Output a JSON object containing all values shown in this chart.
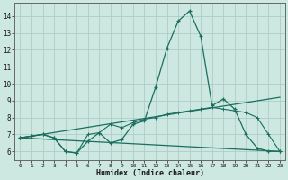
{
  "xlabel": "Humidex (Indice chaleur)",
  "bg_color": "#cce8e0",
  "grid_color": "#b0ccc8",
  "line_color": "#1a6e60",
  "x_ticks": [
    0,
    1,
    2,
    3,
    4,
    5,
    6,
    7,
    8,
    9,
    10,
    11,
    12,
    13,
    14,
    15,
    16,
    17,
    18,
    19,
    20,
    21,
    22,
    23
  ],
  "ylim": [
    5.5,
    14.8
  ],
  "xlim": [
    -0.5,
    23.5
  ],
  "yticks": [
    6,
    7,
    8,
    9,
    10,
    11,
    12,
    13,
    14
  ],
  "series1_x": [
    0,
    1,
    2,
    3,
    4,
    5,
    6,
    7,
    8,
    9,
    10,
    11,
    12,
    13,
    14,
    15,
    16,
    17,
    18,
    19,
    20,
    21,
    22,
    23
  ],
  "series1_y": [
    6.8,
    6.9,
    7.0,
    6.8,
    6.0,
    5.9,
    6.6,
    7.1,
    6.5,
    6.7,
    7.6,
    7.8,
    9.8,
    12.1,
    13.7,
    14.3,
    12.8,
    8.7,
    9.1,
    8.5,
    7.0,
    6.2,
    6.0,
    6.0
  ],
  "series2_x": [
    0,
    1,
    2,
    3,
    4,
    5,
    6,
    7,
    8,
    9,
    10,
    11,
    12,
    13,
    14,
    15,
    16,
    17,
    18,
    19,
    20,
    21,
    22,
    23
  ],
  "series2_y": [
    6.8,
    6.9,
    7.0,
    6.8,
    6.0,
    5.9,
    7.0,
    7.1,
    7.6,
    7.4,
    7.7,
    7.9,
    8.0,
    8.2,
    8.3,
    8.4,
    8.5,
    8.6,
    8.5,
    8.4,
    8.3,
    8.0,
    7.0,
    6.0
  ],
  "series3_x": [
    0,
    23
  ],
  "series3_y": [
    6.8,
    6.0
  ],
  "series4_x": [
    0,
    23
  ],
  "series4_y": [
    6.8,
    9.2
  ]
}
